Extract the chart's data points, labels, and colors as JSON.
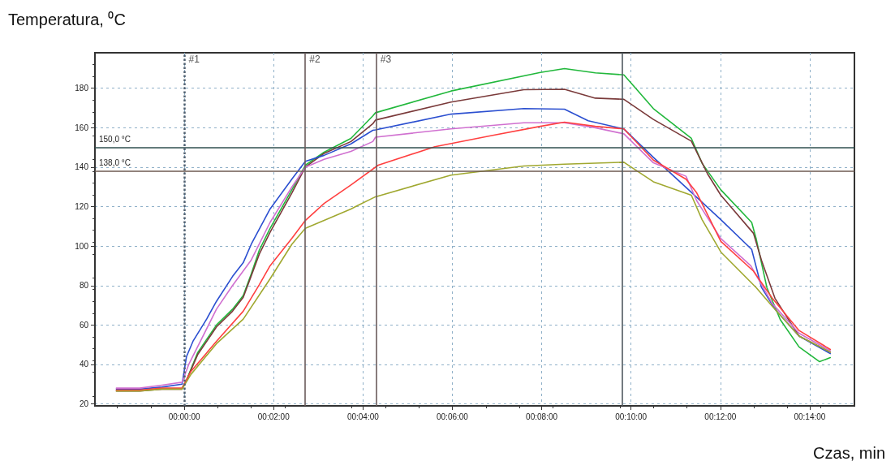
{
  "chart_data": {
    "type": "line",
    "xlabel": "Czas, min",
    "ylabel": "Temperatura, ⁰C",
    "xlim": [
      -2,
      15
    ],
    "ylim": [
      19,
      198
    ],
    "xticks": [
      {
        "value": 0,
        "label": "00:00:00"
      },
      {
        "value": 2,
        "label": "00:02:00"
      },
      {
        "value": 4,
        "label": "00:04:00"
      },
      {
        "value": 6,
        "label": "00:06:00"
      },
      {
        "value": 8,
        "label": "00:08:00"
      },
      {
        "value": 10,
        "label": "00:10:00"
      },
      {
        "value": 12,
        "label": "00:12:00"
      },
      {
        "value": 14,
        "label": "00:14:00"
      }
    ],
    "yticks": [
      20,
      40,
      60,
      80,
      100,
      120,
      140,
      160,
      180
    ],
    "grid": true,
    "marker": "none",
    "line_style": "solid",
    "series": [
      {
        "color": "#22b83c",
        "x": [
          -0.05,
          0.05,
          0.3,
          0.72,
          1.08,
          1.32,
          1.5,
          1.68,
          1.92,
          2.41,
          2.71,
          3.13,
          3.73,
          4.22,
          4.28,
          5.97,
          7.97,
          8.51,
          9.2,
          9.84,
          10.08,
          10.5,
          11.35,
          11.59,
          12.01,
          12.7,
          12.8,
          13.04,
          13.34,
          13.76,
          14.22,
          14.46
        ],
        "values": [
          28,
          32,
          46,
          60,
          68,
          75,
          86,
          98,
          109,
          128.6,
          141,
          147.6,
          154.6,
          166,
          167.6,
          178.6,
          188,
          190,
          187.8,
          186.8,
          180.6,
          169.7,
          154.6,
          142,
          128.5,
          112,
          103.8,
          79,
          62.7,
          48.9,
          41.4,
          43.5
        ]
      },
      {
        "color": "#7a3a3a",
        "x": [
          -1.52,
          -1.0,
          -0.5,
          -0.05,
          0.05,
          0.3,
          0.72,
          1.08,
          1.32,
          1.5,
          1.68,
          1.92,
          2.41,
          2.71,
          3.13,
          3.73,
          4.22,
          4.28,
          5.97,
          7.6,
          8.51,
          9.2,
          9.84,
          10.5,
          11.35,
          11.71,
          12.01,
          12.74,
          12.92,
          13.22,
          13.76,
          14.46
        ],
        "values": [
          26.5,
          26.5,
          27.5,
          27.5,
          32,
          45,
          59,
          67,
          74,
          85,
          96,
          107,
          127,
          140,
          147,
          153,
          162,
          163.9,
          173,
          179.3,
          179.5,
          175,
          174.4,
          164.2,
          153.2,
          136.7,
          125.8,
          106.5,
          92.8,
          73.6,
          54.4,
          46.2
        ]
      },
      {
        "color": "#2b4fd0",
        "x": [
          -1.52,
          -1.0,
          -0.5,
          -0.05,
          0.05,
          0.2,
          0.5,
          0.72,
          1.08,
          1.32,
          1.5,
          1.92,
          2.41,
          2.71,
          3.13,
          3.73,
          4.22,
          4.28,
          5.97,
          7.6,
          8.51,
          9.04,
          9.84,
          10.5,
          11.29,
          12.01,
          12.7,
          12.92,
          13.22,
          13.76,
          14.46
        ],
        "values": [
          27.5,
          27.5,
          28.5,
          30,
          44,
          52,
          63,
          72,
          84.6,
          91.6,
          101,
          118.8,
          134,
          143,
          146,
          151.8,
          158.7,
          158.9,
          166.9,
          169.7,
          169.4,
          163.5,
          159.4,
          145,
          128.5,
          113.4,
          98.3,
          79,
          68.1,
          54.4,
          45.5
        ]
      },
      {
        "color": "#d070d0",
        "x": [
          -1.52,
          -1.0,
          -0.5,
          -0.05,
          0.1,
          0.72,
          1.08,
          1.5,
          1.92,
          2.41,
          2.71,
          3.13,
          3.73,
          4.22,
          4.28,
          5.97,
          7.6,
          8.51,
          9.2,
          9.84,
          10.5,
          11.23,
          11.47,
          12.01,
          12.68,
          13.16,
          13.76,
          14.46
        ],
        "values": [
          28,
          28,
          29.5,
          31,
          40,
          68,
          80,
          93,
          112,
          130,
          140,
          144,
          148,
          153,
          155.2,
          159.4,
          162.5,
          162.5,
          160,
          156.9,
          142.2,
          135.4,
          123,
          103.8,
          90,
          70.9,
          55.8,
          46.9
        ]
      },
      {
        "color": "#ff4040",
        "x": [
          -1.52,
          -1.0,
          -0.5,
          -0.05,
          0.15,
          0.72,
          1.32,
          1.68,
          1.92,
          2.41,
          2.71,
          3.13,
          3.73,
          4.34,
          5.61,
          6.88,
          7.97,
          8.51,
          9.2,
          9.84,
          10.5,
          11.23,
          11.47,
          12.01,
          12.74,
          13.16,
          13.76,
          14.46
        ],
        "values": [
          27,
          27,
          28,
          28,
          36.5,
          51.7,
          67,
          80.5,
          90,
          104,
          113,
          121.6,
          131,
          141,
          150.4,
          156,
          160.7,
          162.8,
          160.7,
          159.4,
          143.6,
          133.9,
          127,
          102.4,
          87.3,
          73.6,
          57.2,
          47.6
        ]
      },
      {
        "color": "#a0a830",
        "x": [
          -1.52,
          -1.0,
          -0.5,
          -0.05,
          0.15,
          0.72,
          1.32,
          1.92,
          2.41,
          2.71,
          3.13,
          3.73,
          3.86,
          4.28,
          5.97,
          7.6,
          8.51,
          9.84,
          10.5,
          11.35,
          11.59,
          12.01,
          12.8,
          13.16,
          13.76,
          14.46
        ],
        "values": [
          26.5,
          26.5,
          27.5,
          27.5,
          35,
          50.5,
          63,
          83.4,
          101,
          109,
          113,
          118.8,
          120.3,
          125,
          136,
          140.6,
          141.5,
          142.5,
          132.6,
          125.8,
          113.4,
          97,
          79,
          69.5,
          54.4,
          46.2
        ]
      }
    ],
    "ref_lines": [
      {
        "axis": "y",
        "value": 150,
        "label": "150,0 °C",
        "color": "#2f4f4f",
        "line_style": "solid"
      },
      {
        "axis": "y",
        "value": 138,
        "label": "138,0 °C",
        "color": "#6e5a50",
        "line_style": "solid"
      },
      {
        "axis": "x",
        "value": 0,
        "label": null,
        "color": "#506070",
        "line_style": "dotted"
      },
      {
        "axis": "x",
        "value": 2.7,
        "label": null,
        "color": "#6a5a5a",
        "line_style": "solid"
      },
      {
        "axis": "x",
        "value": 4.29,
        "label": null,
        "color": "#6a5a5a",
        "line_style": "solid"
      },
      {
        "axis": "x",
        "value": 9.8,
        "label": null,
        "color": "#505a60",
        "line_style": "solid"
      }
    ],
    "annotations": [
      {
        "text": "#1",
        "x": 0,
        "y": 198
      },
      {
        "text": "#2",
        "x": 2.7,
        "y": 198
      },
      {
        "text": "#3",
        "x": 4.29,
        "y": 198
      }
    ]
  }
}
